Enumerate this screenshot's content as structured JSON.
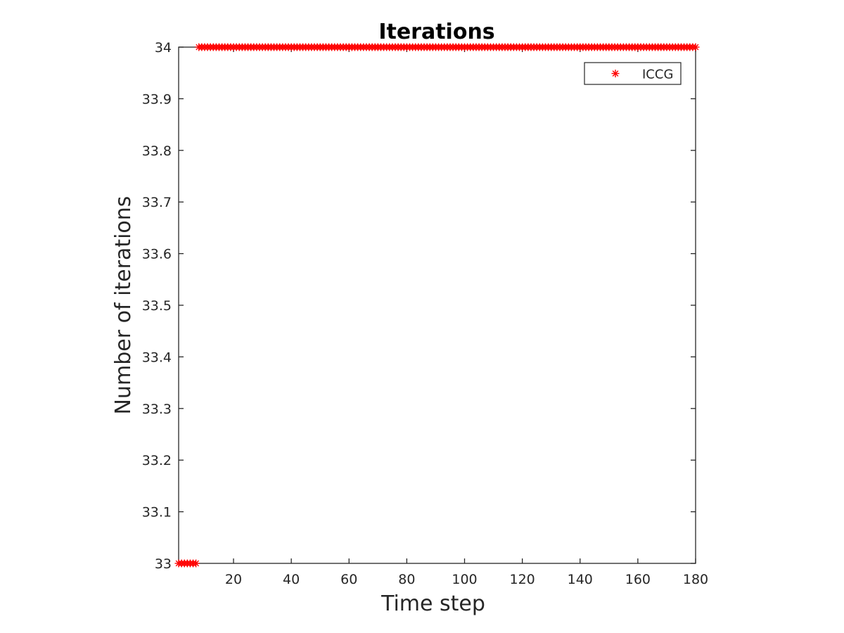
{
  "chart_data": {
    "type": "scatter",
    "title": "Iterations",
    "xlabel": "Time step",
    "ylabel": "Number of iterations",
    "xlim": [
      1,
      180
    ],
    "ylim": [
      33,
      34
    ],
    "xticks": [
      20,
      40,
      60,
      80,
      100,
      120,
      140,
      160,
      180
    ],
    "xtick_labels": [
      "20",
      "40",
      "60",
      "80",
      "100",
      "120",
      "140",
      "160",
      "180"
    ],
    "yticks": [
      33,
      33.1,
      33.2,
      33.3,
      33.4,
      33.5,
      33.6,
      33.7,
      33.8,
      33.9,
      34
    ],
    "ytick_labels": [
      "33",
      "33.1",
      "33.2",
      "33.3",
      "33.4",
      "33.5",
      "33.6",
      "33.7",
      "33.8",
      "33.9",
      "34"
    ],
    "grid": false,
    "legend_position": "top-right",
    "series": [
      {
        "name": "ICCG",
        "marker": "asterisk",
        "color": "#ff0000",
        "segments": [
          {
            "x_start": 1,
            "x_end": 7,
            "y": 33
          },
          {
            "x_start": 8,
            "x_end": 180,
            "y": 34
          }
        ]
      }
    ]
  }
}
